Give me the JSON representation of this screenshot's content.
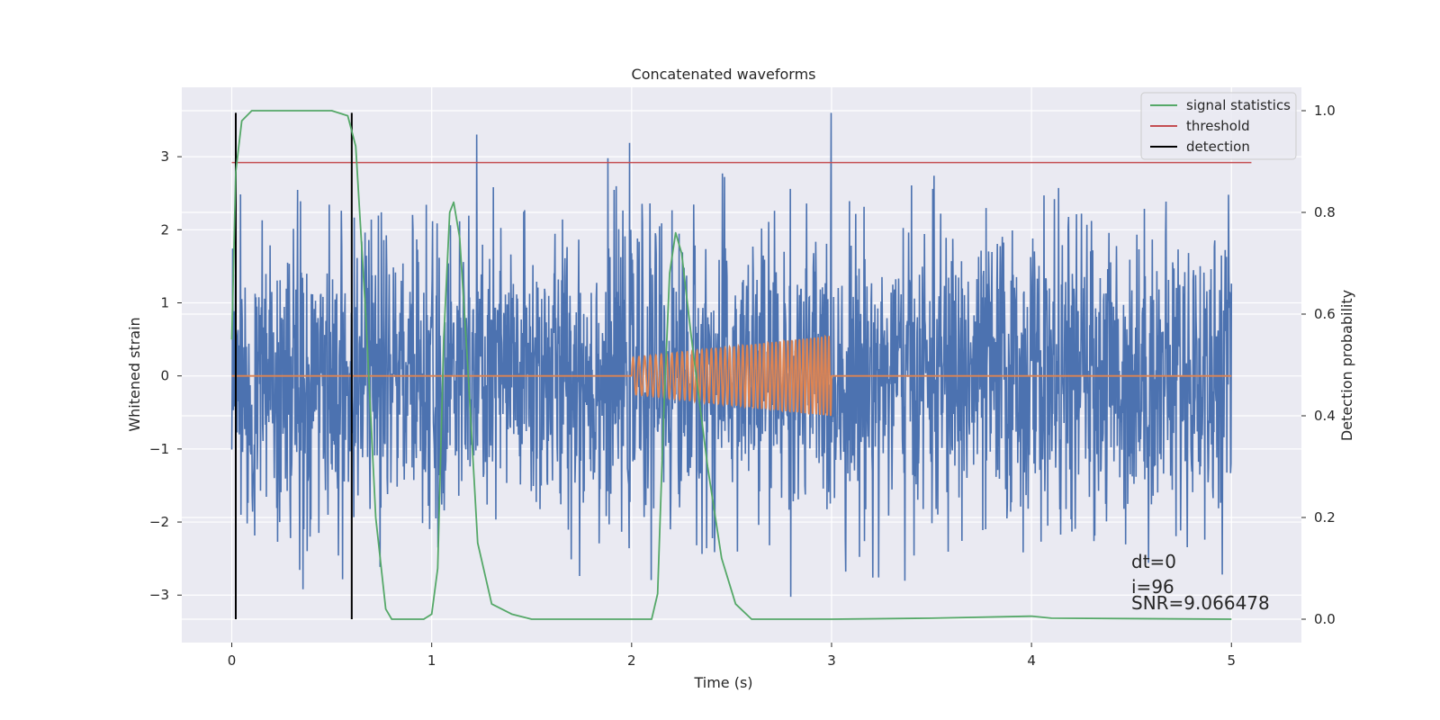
{
  "chart_data": {
    "type": "line",
    "title": "Concatenated waveforms",
    "xlabel": "Time (s)",
    "ylabel": "Whitened strain",
    "y2label": "Detection probability",
    "xlim": [
      -0.25,
      5.35
    ],
    "ylim": [
      -3.65,
      3.95
    ],
    "y2lim": [
      -0.046,
      1.046
    ],
    "xticks": [
      0,
      1,
      2,
      3,
      4,
      5
    ],
    "yticks": [
      -3,
      -2,
      -1,
      0,
      1,
      2,
      3
    ],
    "y2ticks": [
      0.0,
      0.2,
      0.4,
      0.6,
      0.8,
      1.0
    ],
    "grid": true,
    "legend_position": "top-right",
    "colors": {
      "noise": "#4c72b0",
      "injection": "#dd8452",
      "signal_statistics": "#55a868",
      "threshold": "#c44e52",
      "detection": "#000000",
      "axes_bg": "#eaeaf2"
    },
    "legend": [
      {
        "label": "signal statistics",
        "color": "#55a868"
      },
      {
        "label": "threshold",
        "color": "#c44e52"
      },
      {
        "label": "detection",
        "color": "#000000"
      }
    ],
    "noise": {
      "x_start": 0,
      "x_end": 5,
      "typical_amplitude": 1.0,
      "peak_amplitude": 3.6
    },
    "injection": {
      "x_start": 2.0,
      "x_end": 3.0,
      "amplitude_start": 0.25,
      "amplitude_end": 0.55,
      "cycles": 45
    },
    "threshold": {
      "x": [
        0,
        5.1
      ],
      "y": [
        2.92,
        2.92
      ]
    },
    "detections": [
      0.02,
      0.6
    ],
    "detection_range": [
      -3.33,
      3.6
    ],
    "signal_statistics": {
      "x": [
        0,
        0.02,
        0.05,
        0.1,
        0.2,
        0.5,
        0.58,
        0.62,
        0.67,
        0.72,
        0.77,
        0.8,
        0.9,
        0.96,
        1.0,
        1.03,
        1.06,
        1.09,
        1.11,
        1.14,
        1.18,
        1.23,
        1.3,
        1.4,
        1.5,
        2.0,
        2.1,
        2.13,
        2.16,
        2.19,
        2.22,
        2.25,
        2.3,
        2.38,
        2.45,
        2.52,
        2.6,
        3.0,
        3.5,
        4.0,
        4.1,
        5.0
      ],
      "y": [
        0.55,
        0.88,
        0.98,
        1.0,
        1.0,
        1.0,
        0.99,
        0.93,
        0.6,
        0.2,
        0.02,
        0.0,
        0.0,
        0.0,
        0.01,
        0.1,
        0.55,
        0.8,
        0.82,
        0.75,
        0.5,
        0.15,
        0.03,
        0.01,
        0.0,
        0.0,
        0.0,
        0.05,
        0.4,
        0.68,
        0.76,
        0.72,
        0.55,
        0.3,
        0.12,
        0.03,
        0.0,
        0.0,
        0.002,
        0.006,
        0.002,
        0.0
      ]
    },
    "annotations": [
      "dt=0",
      "i=96",
      "SNR=9.066478"
    ]
  }
}
